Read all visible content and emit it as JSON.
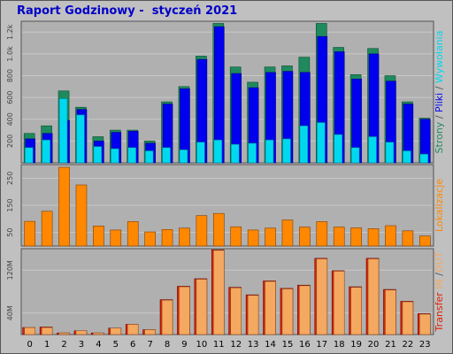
{
  "title": "Raport Godzinowy -  styczeń 2021",
  "colors": {
    "background": "#c0c0c0",
    "plot": "#b0b0b0",
    "frame": "#555555",
    "grid": "#c8c8c8",
    "title": "#0000c8",
    "strony": "#1e8a5e",
    "pliki": "#0000ee",
    "wywolania": "#00d8f0",
    "lokalizacje": "#ff8800",
    "transfer_in": "#e02000",
    "transfer_out": "#f4a860"
  },
  "chart_data": [
    {
      "type": "bar",
      "panel": "requests",
      "categories": [
        "0",
        "1",
        "2",
        "3",
        "4",
        "5",
        "6",
        "7",
        "8",
        "9",
        "10",
        "11",
        "12",
        "13",
        "14",
        "15",
        "16",
        "17",
        "18",
        "19",
        "20",
        "21",
        "22",
        "23"
      ],
      "ylim": [
        0,
        1300
      ],
      "yticks": [
        200,
        400,
        600,
        800,
        1000,
        1200
      ],
      "ytick_labels": [
        "200",
        "400",
        "600",
        "800",
        "1.0k",
        "1.2k"
      ],
      "grid": true,
      "side_label": [
        {
          "text": "Strony",
          "color": "#1e8a5e"
        },
        {
          "text": " / ",
          "color": "#555555"
        },
        {
          "text": "Pliki",
          "color": "#0000ee"
        },
        {
          "text": " / ",
          "color": "#555555"
        },
        {
          "text": "Wywołania",
          "color": "#00d8f0"
        }
      ],
      "series": [
        {
          "name": "Strony",
          "color": "#1e8a5e",
          "values": [
            270,
            340,
            660,
            510,
            240,
            300,
            300,
            200,
            560,
            700,
            980,
            1280,
            880,
            740,
            880,
            890,
            970,
            1280,
            1060,
            810,
            1050,
            800,
            560,
            410
          ]
        },
        {
          "name": "Pliki",
          "color": "#0000ee",
          "values": [
            220,
            270,
            390,
            490,
            200,
            280,
            290,
            180,
            540,
            680,
            950,
            1250,
            820,
            690,
            830,
            840,
            830,
            1160,
            1020,
            770,
            1000,
            750,
            540,
            400
          ]
        },
        {
          "name": "Wywołania",
          "color": "#00d8f0",
          "values": [
            140,
            210,
            590,
            440,
            150,
            130,
            140,
            110,
            140,
            120,
            190,
            210,
            170,
            180,
            210,
            220,
            340,
            370,
            260,
            140,
            240,
            190,
            110,
            80
          ]
        }
      ]
    },
    {
      "type": "bar",
      "panel": "locations",
      "categories": [
        "0",
        "1",
        "2",
        "3",
        "4",
        "5",
        "6",
        "7",
        "8",
        "9",
        "10",
        "11",
        "12",
        "13",
        "14",
        "15",
        "16",
        "17",
        "18",
        "19",
        "20",
        "21",
        "22",
        "23"
      ],
      "ylim": [
        0,
        300
      ],
      "yticks": [
        50,
        150,
        250
      ],
      "ytick_labels": [
        "50",
        "150",
        "250"
      ],
      "grid": true,
      "side_label": [
        {
          "text": "Lokalizacje",
          "color": "#ff8800"
        }
      ],
      "series": [
        {
          "name": "Lokalizacje",
          "color": "#ff8800",
          "values": [
            91,
            128,
            290,
            225,
            74,
            59,
            90,
            52,
            61,
            66,
            112,
            120,
            71,
            59,
            66,
            96,
            70,
            90,
            70,
            67,
            64,
            75,
            56,
            37
          ]
        }
      ]
    },
    {
      "type": "bar",
      "panel": "transfer",
      "categories": [
        "0",
        "1",
        "2",
        "3",
        "4",
        "5",
        "6",
        "7",
        "8",
        "9",
        "10",
        "11",
        "12",
        "13",
        "14",
        "15",
        "16",
        "17",
        "18",
        "19",
        "20",
        "21",
        "22",
        "23"
      ],
      "ylim": [
        0,
        160
      ],
      "yticks": [
        40,
        120
      ],
      "ytick_labels": [
        "40M",
        "120M"
      ],
      "grid": true,
      "side_label": [
        {
          "text": "Transfer",
          "color": "#e02000"
        },
        {
          "text": " IN ",
          "color": "#f4a860"
        },
        {
          "text": "/",
          "color": "#555555"
        },
        {
          "text": "OUT ",
          "color": "#f4a860"
        }
      ],
      "series": [
        {
          "name": "IN",
          "color": "#e02000",
          "values": [
            13,
            14,
            3,
            7,
            3,
            12,
            19,
            9,
            65,
            90,
            104,
            158,
            88,
            74,
            100,
            86,
            92,
            142,
            119,
            89,
            142,
            84,
            62,
            39
          ]
        },
        {
          "name": "OUT",
          "color": "#f4a860",
          "values": [
            13,
            13,
            3,
            7,
            3,
            12,
            19,
            9,
            64,
            89,
            103,
            157,
            87,
            73,
            99,
            85,
            91,
            141,
            118,
            88,
            141,
            83,
            61,
            38
          ]
        }
      ]
    }
  ]
}
